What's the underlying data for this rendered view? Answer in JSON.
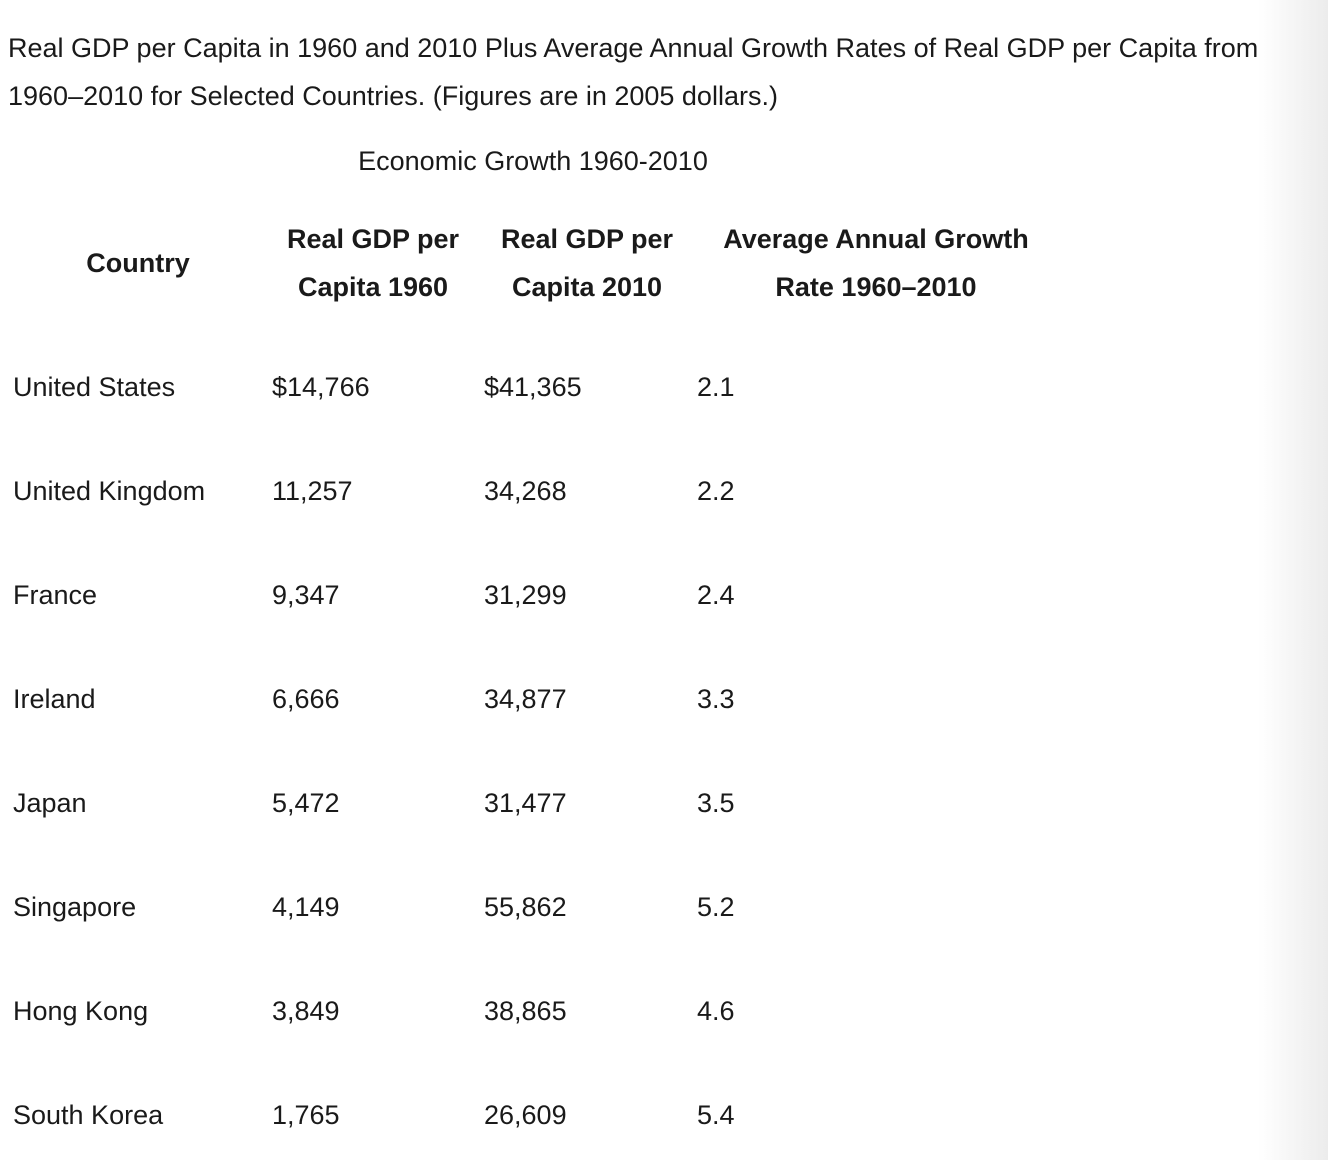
{
  "title": "Real GDP per Capita in 1960 and 2010 Plus Average Annual Growth Rates of Real GDP per Capita from 1960–2010 for Selected Countries. (Figures are in 2005 dollars.)",
  "table": {
    "caption": "Economic Growth 1960-2010",
    "headers": [
      "Country",
      "Real GDP per Capita 1960",
      "Real GDP per Capita 2010",
      "Average Annual Growth Rate 1960–2010"
    ],
    "rows": [
      [
        "United States",
        "$14,766",
        "$41,365",
        "2.1"
      ],
      [
        "United Kingdom",
        "11,257",
        "34,268",
        "2.2"
      ],
      [
        "France",
        "9,347",
        "31,299",
        "2.4"
      ],
      [
        "Ireland",
        "6,666",
        "34,877",
        "3.3"
      ],
      [
        "Japan",
        "5,472",
        "31,477",
        "3.5"
      ],
      [
        "Singapore",
        "4,149",
        "55,862",
        "5.2"
      ],
      [
        "Hong Kong",
        "3,849",
        "38,865",
        "4.6"
      ],
      [
        "South Korea",
        "1,765",
        "26,609",
        "5.4"
      ]
    ]
  }
}
